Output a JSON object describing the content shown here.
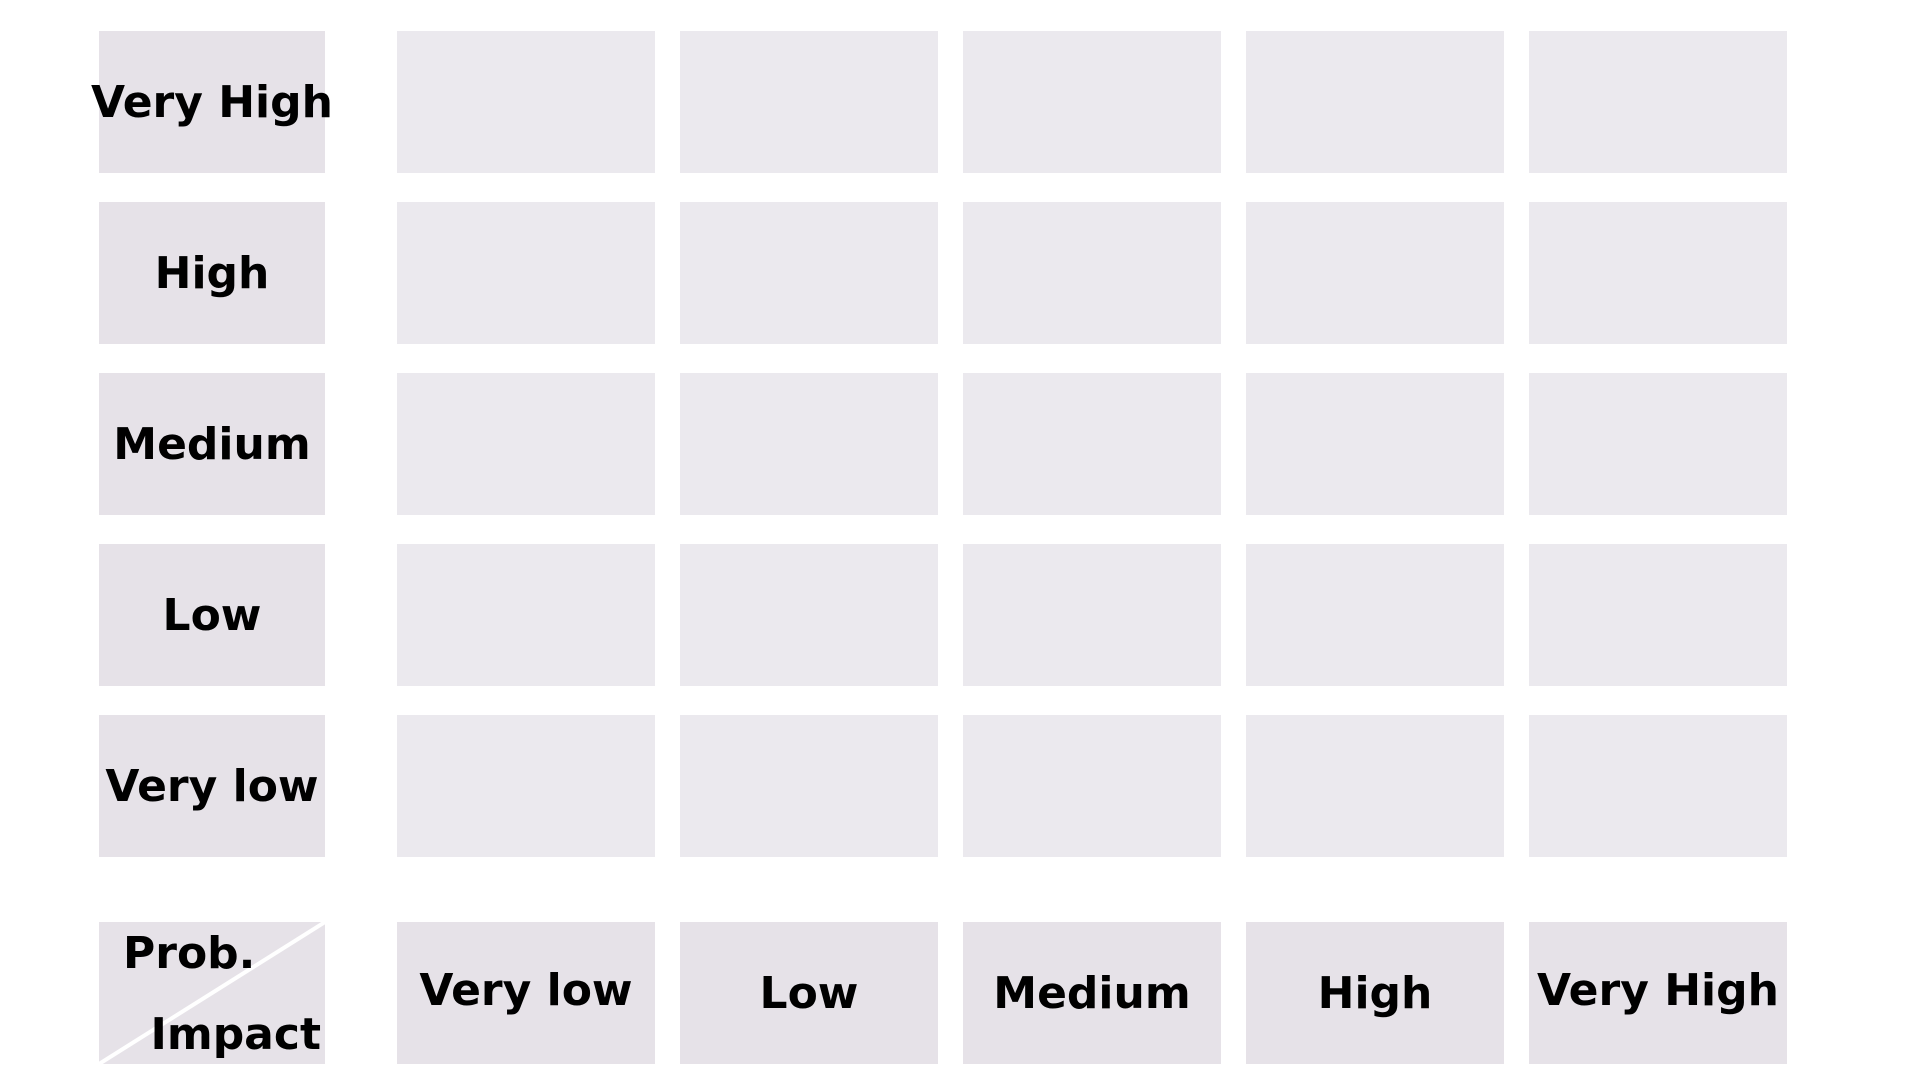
{
  "corner": {
    "row_axis_label": "Prob.",
    "column_axis_label": "Impact"
  },
  "probability_levels": [
    "Very High",
    "High",
    "Medium",
    "Low",
    "Very low"
  ],
  "impact_levels": [
    "Very low",
    "Low",
    "Medium",
    "High",
    "Very High"
  ],
  "colors": {
    "header_fill": "#e6e2e8",
    "cell_fill": "#ebe9ee",
    "background": "#ffffff",
    "text": "#000000",
    "divider": "#ffffff"
  }
}
